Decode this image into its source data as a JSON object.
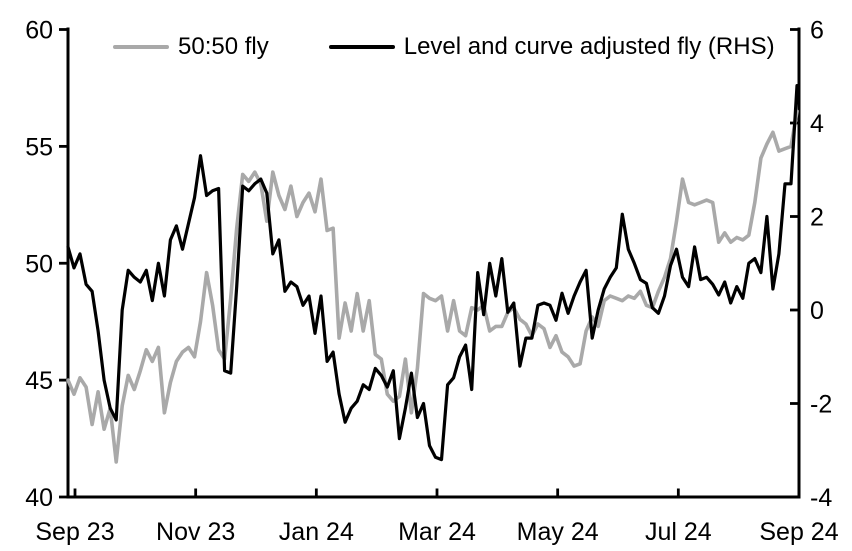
{
  "chart_data": {
    "type": "line",
    "title": "",
    "background": "#ffffff",
    "axis_color": "#000000",
    "x_axis": {
      "tick_labels": [
        "Sep 23",
        "Nov 23",
        "Jan 24",
        "Mar 24",
        "May 24",
        "Jul 24",
        "Sep 24"
      ]
    },
    "y_axis_left": {
      "range": [
        40,
        60
      ],
      "ticks": [
        40,
        45,
        50,
        55,
        60
      ]
    },
    "y_axis_right": {
      "range": [
        -4,
        6
      ],
      "ticks": [
        -4,
        -2,
        0,
        2,
        4,
        6
      ]
    },
    "legend": [
      {
        "label": "50:50 fly",
        "color": "#a9a9a9"
      },
      {
        "label": "Level and curve adjusted fly (RHS)",
        "color": "#000000"
      }
    ],
    "series": [
      {
        "name": "50:50 fly",
        "axis": "left",
        "color": "#a9a9a9",
        "stroke_width": 3.6,
        "values": [
          45.0,
          44.4,
          45.1,
          44.7,
          43.1,
          44.5,
          42.9,
          43.8,
          41.5,
          43.9,
          45.2,
          44.6,
          45.4,
          46.3,
          45.8,
          46.4,
          43.6,
          44.9,
          45.8,
          46.2,
          46.4,
          46.0,
          47.5,
          49.6,
          48.2,
          46.3,
          45.9,
          48.5,
          51.5,
          53.8,
          53.5,
          53.9,
          53.4,
          51.8,
          53.9,
          52.9,
          52.3,
          53.3,
          52.0,
          52.6,
          53.0,
          52.2,
          53.6,
          51.4,
          51.5,
          46.8,
          48.3,
          47.1,
          48.7,
          47.1,
          48.4,
          46.1,
          45.9,
          44.4,
          44.1,
          44.3,
          45.9,
          43.6,
          45.5,
          48.7,
          48.5,
          48.4,
          48.6,
          47.1,
          48.4,
          47.1,
          46.9,
          48.1,
          48.0,
          48.2,
          47.1,
          47.3,
          47.3,
          47.9,
          48.1,
          47.6,
          47.4,
          46.9,
          47.4,
          47.2,
          46.4,
          46.9,
          46.2,
          46.0,
          45.6,
          45.7,
          47.1,
          47.7,
          47.3,
          48.4,
          48.6,
          48.5,
          48.4,
          48.6,
          48.5,
          48.8,
          48.2,
          48.1,
          48.8,
          49.4,
          50.2,
          51.8,
          53.6,
          52.6,
          52.5,
          52.6,
          52.7,
          52.6,
          50.9,
          51.3,
          50.9,
          51.1,
          51.0,
          51.2,
          52.6,
          54.5,
          55.1,
          55.6,
          54.8,
          54.9,
          55.0,
          56.5
        ]
      },
      {
        "name": "Level and curve adjusted fly (RHS)",
        "axis": "right",
        "color": "#000000",
        "stroke_width": 3.2,
        "values": [
          1.35,
          0.9,
          1.2,
          0.55,
          0.4,
          -0.45,
          -1.5,
          -2.1,
          -2.35,
          0.0,
          0.85,
          0.7,
          0.6,
          0.85,
          0.2,
          1.0,
          0.3,
          1.5,
          1.8,
          1.3,
          1.85,
          2.4,
          3.3,
          2.45,
          2.55,
          2.6,
          -1.3,
          -1.35,
          0.5,
          2.65,
          2.55,
          2.7,
          2.8,
          2.5,
          1.2,
          1.5,
          0.4,
          0.6,
          0.5,
          0.1,
          0.3,
          -0.5,
          0.3,
          -1.1,
          -0.9,
          -1.8,
          -2.4,
          -2.1,
          -1.95,
          -1.6,
          -1.7,
          -1.25,
          -1.4,
          -1.65,
          -1.3,
          -2.75,
          -2.1,
          -1.35,
          -2.3,
          -2.0,
          -2.9,
          -3.15,
          -3.2,
          -1.6,
          -1.45,
          -1.0,
          -0.75,
          -1.7,
          0.8,
          -0.1,
          1.0,
          0.3,
          1.1,
          -0.05,
          0.15,
          -1.2,
          -0.6,
          -0.6,
          0.1,
          0.15,
          0.1,
          -0.22,
          0.36,
          -0.07,
          0.3,
          0.6,
          0.85,
          -0.6,
          0.0,
          0.45,
          0.7,
          0.9,
          2.05,
          1.3,
          1.0,
          0.65,
          0.57,
          0.05,
          -0.07,
          0.3,
          0.95,
          1.3,
          0.7,
          0.5,
          1.35,
          0.65,
          0.7,
          0.55,
          0.32,
          0.6,
          0.15,
          0.5,
          0.25,
          1.0,
          1.1,
          0.8,
          2.0,
          0.45,
          1.2,
          2.7,
          2.7,
          4.8
        ]
      }
    ]
  }
}
